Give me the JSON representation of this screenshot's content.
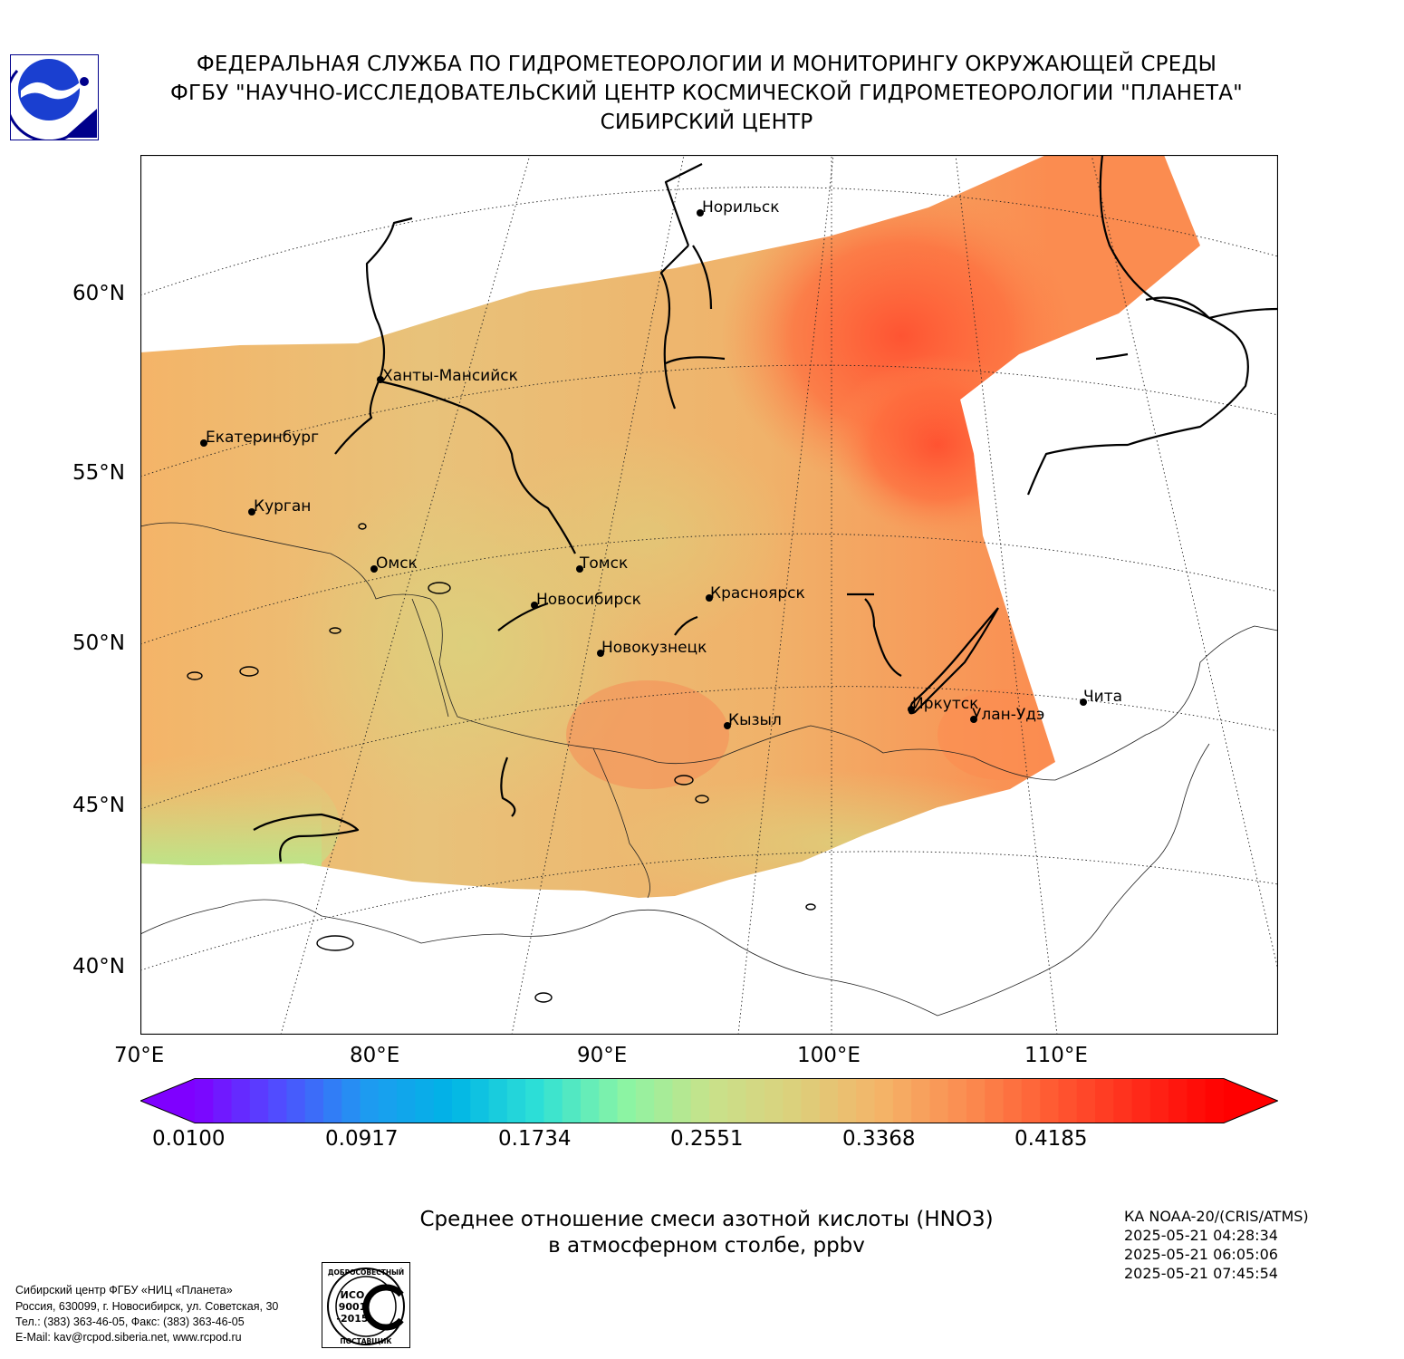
{
  "header": {
    "line1": "ФЕДЕРАЛЬНАЯ СЛУЖБА ПО ГИДРОМЕТЕОРОЛОГИИ И МОНИТОРИНГУ ОКРУЖАЮЩЕЙ СРЕДЫ",
    "line2": "ФГБУ \"НАУЧНО-ИССЛЕДОВАТЕЛЬСКИЙ ЦЕНТР КОСМИЧЕСКОЙ ГИДРОМЕТЕОРОЛОГИИ \"ПЛАНЕТА\"",
    "line3": "СИБИРСКИЙ ЦЕНТР",
    "logo_icon": "planeta-logo-icon"
  },
  "map": {
    "lat_labels": [
      "60°N",
      "55°N",
      "50°N",
      "45°N",
      "40°N"
    ],
    "lon_labels": [
      "70°E",
      "80°E",
      "90°E",
      "100°E",
      "110°E"
    ],
    "cities": [
      {
        "name": "Норильск"
      },
      {
        "name": "Ханты-Мансийск"
      },
      {
        "name": "Екатеринбург"
      },
      {
        "name": "Курган"
      },
      {
        "name": "Омск"
      },
      {
        "name": "Томск"
      },
      {
        "name": "Новосибирск"
      },
      {
        "name": "Красноярск"
      },
      {
        "name": "Новокузнецк"
      },
      {
        "name": "Кызыл"
      },
      {
        "name": "Иркутск"
      },
      {
        "name": "Улан-Удэ"
      },
      {
        "name": "Чита"
      }
    ]
  },
  "colorbar": {
    "ticks": [
      "0.0100",
      "0.0917",
      "0.1734",
      "0.2551",
      "0.3368",
      "0.4185"
    ],
    "min": 0.01,
    "max": 0.5,
    "colors": [
      "#7f00ff",
      "#4f4fff",
      "#1e9af0",
      "#00b4e6",
      "#2ee0d6",
      "#8af5a4",
      "#c8e28a",
      "#dcd07c",
      "#f4b468",
      "#fb8c50",
      "#ff5a32",
      "#ff2a1a",
      "#ff0000"
    ]
  },
  "caption": {
    "line1": "Среднее отношение смеси азотной кислоты (HNO3)",
    "line2": "в атмосферном столбе, ppbv"
  },
  "satellite": {
    "name": "КА NOAA-20/(CRIS/ATMS)",
    "times": [
      "2025-05-21 04:28:34",
      "2025-05-21 06:05:06",
      "2025-05-21 07:45:54"
    ]
  },
  "footer": {
    "address": [
      "Сибирский центр ФГБУ «НИЦ «Планета»",
      "Россия, 630099, г. Новосибирск, ул. Советская, 30",
      "Тел.: (383) 363-46-05, Факс: (383) 363-46-05",
      "E-Mail: kav@rcpod.siberia.net, www.rcpod.ru"
    ],
    "iso_badge": {
      "top": "ДОБРОСОВЕСТНЫЙ",
      "center_line1": "ИСО",
      "center_line2": "9001",
      "center_line3": "-2015",
      "bottom": "ПОСТАВЩИК"
    }
  }
}
